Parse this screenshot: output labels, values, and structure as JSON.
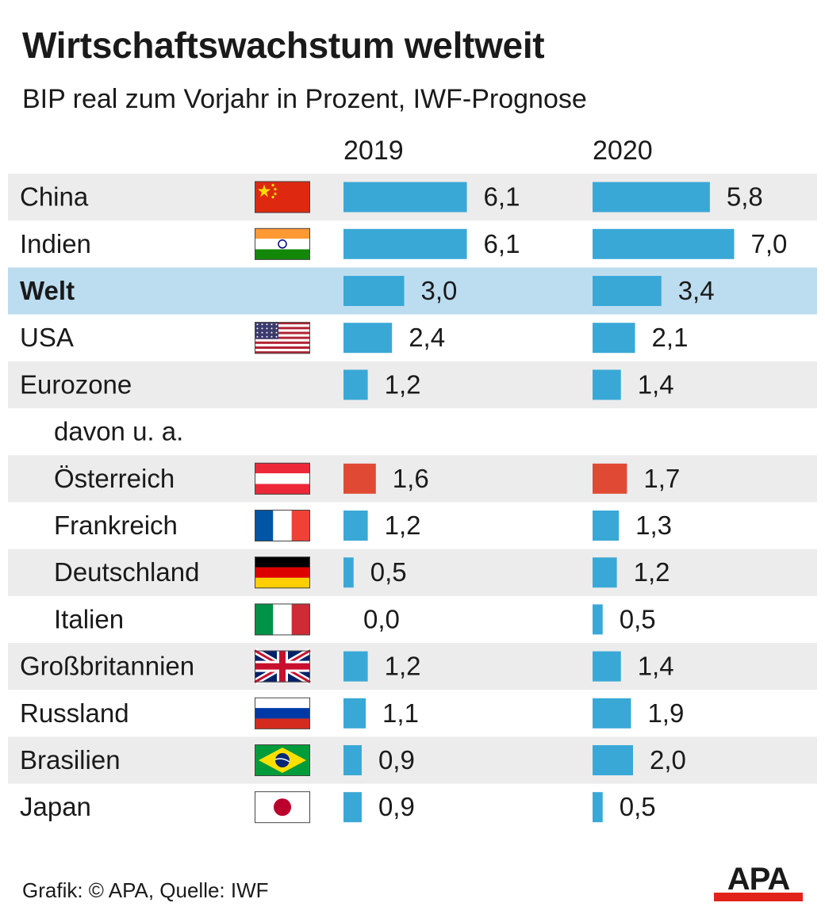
{
  "title": "Wirtschaftswachstum weltweit",
  "subtitle": "BIP real zum Vorjahr in Prozent, IWF-Prognose",
  "footer": "Grafik: © APA, Quelle: IWF",
  "logo_text": "APA",
  "colors": {
    "bar": "#3aa8d6",
    "bar_highlight": "#e04a35",
    "row_alt": "#ececec",
    "row_world": "#bcdcef",
    "logo_bar": "#e2231a"
  },
  "chart_data": {
    "type": "bar",
    "orientation": "horizontal",
    "title": "Wirtschaftswachstum weltweit",
    "subtitle": "BIP real zum Vorjahr in Prozent, IWF-Prognose",
    "series": [
      {
        "name": "2019",
        "values": [
          6.1,
          6.1,
          3.0,
          2.4,
          1.2,
          null,
          1.6,
          1.2,
          0.5,
          0.0,
          1.2,
          1.1,
          0.9,
          0.9
        ]
      },
      {
        "name": "2020",
        "values": [
          5.8,
          7.0,
          3.4,
          2.1,
          1.4,
          null,
          1.7,
          1.3,
          1.2,
          0.5,
          1.4,
          1.9,
          2.0,
          0.5
        ]
      }
    ],
    "rows": [
      {
        "label": "China",
        "flag": "china-flag-icon",
        "shaded": true,
        "indent": false,
        "bold": false,
        "highlight": false,
        "values": [
          "6,1",
          "5,8"
        ]
      },
      {
        "label": "Indien",
        "flag": "india-flag-icon",
        "shaded": false,
        "indent": false,
        "bold": false,
        "highlight": false,
        "values": [
          "6,1",
          "7,0"
        ]
      },
      {
        "label": "Welt",
        "flag": "",
        "shaded": true,
        "world": true,
        "indent": false,
        "bold": true,
        "highlight": false,
        "values": [
          "3,0",
          "3,4"
        ]
      },
      {
        "label": "USA",
        "flag": "usa-flag-icon",
        "shaded": false,
        "indent": false,
        "bold": false,
        "highlight": false,
        "values": [
          "2,4",
          "2,1"
        ]
      },
      {
        "label": "Eurozone",
        "flag": "",
        "shaded": true,
        "indent": false,
        "bold": false,
        "highlight": false,
        "values": [
          "1,2",
          "1,4"
        ]
      },
      {
        "label": "davon u. a.",
        "flag": "",
        "shaded": false,
        "indent": true,
        "bold": false,
        "highlight": false,
        "values": null
      },
      {
        "label": "Österreich",
        "flag": "austria-flag-icon",
        "shaded": true,
        "indent": true,
        "bold": false,
        "highlight": true,
        "values": [
          "1,6",
          "1,7"
        ]
      },
      {
        "label": "Frankreich",
        "flag": "france-flag-icon",
        "shaded": false,
        "indent": true,
        "bold": false,
        "highlight": false,
        "values": [
          "1,2",
          "1,3"
        ]
      },
      {
        "label": "Deutschland",
        "flag": "germany-flag-icon",
        "shaded": true,
        "indent": true,
        "bold": false,
        "highlight": false,
        "values": [
          "0,5",
          "1,2"
        ]
      },
      {
        "label": "Italien",
        "flag": "italy-flag-icon",
        "shaded": false,
        "indent": true,
        "bold": false,
        "highlight": false,
        "values": [
          "0,0",
          "0,5"
        ]
      },
      {
        "label": "Großbritannien",
        "flag": "uk-flag-icon",
        "shaded": true,
        "indent": false,
        "bold": false,
        "highlight": false,
        "values": [
          "1,2",
          "1,4"
        ]
      },
      {
        "label": "Russland",
        "flag": "russia-flag-icon",
        "shaded": false,
        "indent": false,
        "bold": false,
        "highlight": false,
        "values": [
          "1,1",
          "1,9"
        ]
      },
      {
        "label": "Brasilien",
        "flag": "brazil-flag-icon",
        "shaded": true,
        "indent": false,
        "bold": false,
        "highlight": false,
        "values": [
          "0,9",
          "2,0"
        ]
      },
      {
        "label": "Japan",
        "flag": "japan-flag-icon",
        "shaded": false,
        "indent": false,
        "bold": false,
        "highlight": false,
        "values": [
          "0,9",
          "0,5"
        ]
      }
    ],
    "xlim": [
      0,
      7.0
    ],
    "grid": false,
    "legend": "column headers"
  }
}
